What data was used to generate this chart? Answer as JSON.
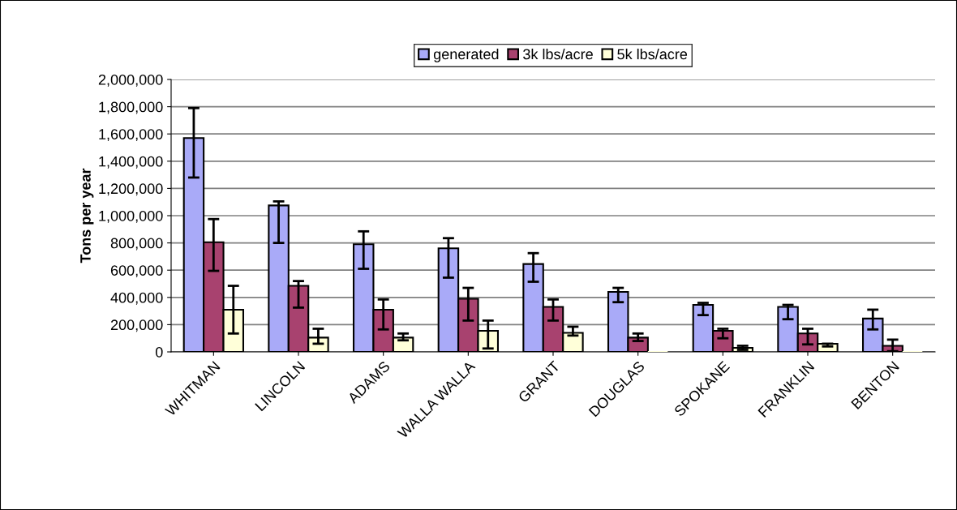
{
  "chart_data": {
    "type": "bar",
    "ylabel": "Tons per year",
    "categories": [
      "WHITMAN",
      "LINCOLN",
      "ADAMS",
      "WALLA WALLA",
      "GRANT",
      "DOUGLAS",
      "SPOKANE",
      "FRANKLIN",
      "BENTON"
    ],
    "series": [
      {
        "name": "generated",
        "color": "#a9aaf8",
        "values": [
          1570000,
          1075000,
          790000,
          760000,
          645000,
          440000,
          345000,
          330000,
          245000
        ],
        "errors": [
          [
            1280000,
            1790000
          ],
          [
            800000,
            1105000
          ],
          [
            610000,
            885000
          ],
          [
            545000,
            835000
          ],
          [
            515000,
            725000
          ],
          [
            365000,
            470000
          ],
          [
            270000,
            360000
          ],
          [
            240000,
            345000
          ],
          [
            165000,
            310000
          ]
        ]
      },
      {
        "name": "3k lbs/acre",
        "color": "#a8426f",
        "values": [
          805000,
          485000,
          310000,
          390000,
          330000,
          105000,
          155000,
          135000,
          45000
        ],
        "errors": [
          [
            595000,
            975000
          ],
          [
            325000,
            520000
          ],
          [
            165000,
            385000
          ],
          [
            230000,
            470000
          ],
          [
            230000,
            385000
          ],
          [
            80000,
            135000
          ],
          [
            100000,
            170000
          ],
          [
            55000,
            170000
          ],
          [
            5000,
            90000
          ]
        ]
      },
      {
        "name": "5k lbs/acre",
        "color": "#ffffd9",
        "values": [
          310000,
          105000,
          105000,
          155000,
          140000,
          0,
          30000,
          60000,
          0
        ],
        "errors": [
          [
            135000,
            485000
          ],
          [
            60000,
            170000
          ],
          [
            85000,
            135000
          ],
          [
            25000,
            230000
          ],
          [
            120000,
            185000
          ],
          null,
          [
            15000,
            45000
          ],
          [
            40000,
            60000
          ],
          null
        ]
      }
    ],
    "ylim": [
      0,
      2000000
    ],
    "yticks": [
      0,
      {
        "value": 200000,
        "label": "200,000"
      },
      {
        "value": 400000,
        "label": "400,000"
      },
      {
        "value": 600000,
        "label": "600,000"
      },
      {
        "value": 800000,
        "label": "800,000"
      },
      {
        "value": 1000000,
        "label": "1,000,000"
      },
      {
        "value": 1200000,
        "label": "1,200,000"
      },
      {
        "value": 1400000,
        "label": "1,400,000"
      },
      {
        "value": 1600000,
        "label": "1,600,000"
      },
      {
        "value": 1800000,
        "label": "1,800,000"
      },
      {
        "value": 2000000,
        "label": "2,000,000"
      }
    ],
    "grid": "y",
    "legend": "top"
  }
}
